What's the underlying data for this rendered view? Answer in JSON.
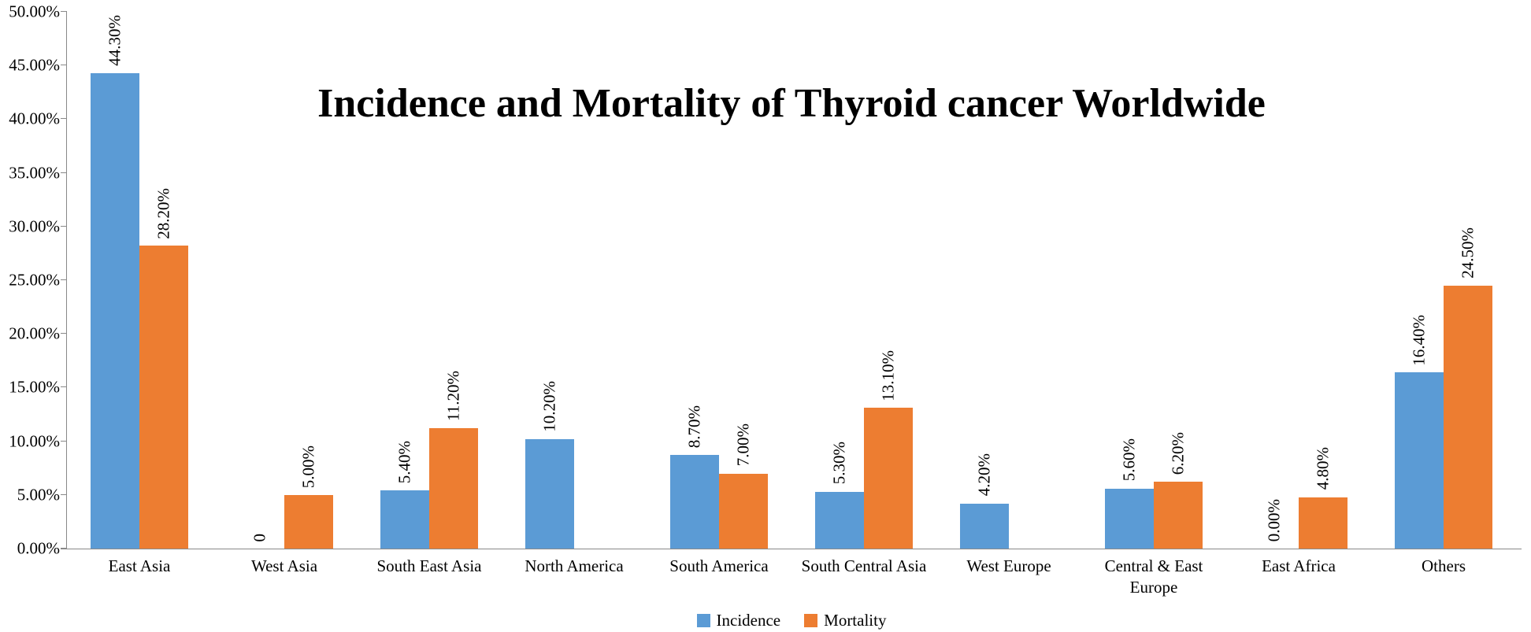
{
  "chart_data": {
    "type": "bar",
    "title": "Incidence and Mortality of Thyroid cancer Worldwide",
    "categories": [
      "East Asia",
      "West Asia",
      "South East Asia",
      "North America",
      "South America",
      "South Central Asia",
      "West Europe",
      "Central & East Europe",
      "East Africa",
      "Others"
    ],
    "series": [
      {
        "name": "Incidence",
        "color": "#5B9BD5",
        "values": [
          44.3,
          0,
          5.4,
          10.2,
          8.7,
          5.3,
          4.2,
          5.6,
          0,
          16.4
        ],
        "labels": [
          "44.30%",
          "0",
          "5.40%",
          "10.20%",
          "8.70%",
          "5.30%",
          "4.20%",
          "5.60%",
          "0.00%",
          "16.40%"
        ]
      },
      {
        "name": "Mortality",
        "color": "#ED7D31",
        "values": [
          28.2,
          5.0,
          11.2,
          null,
          7.0,
          13.1,
          null,
          6.2,
          4.8,
          24.5
        ],
        "labels": [
          "28.20%",
          "5.00%",
          "11.20%",
          null,
          "7.00%",
          "13.10%",
          null,
          "6.20%",
          "4.80%",
          "24.50%"
        ]
      }
    ],
    "ylim": [
      0,
      50
    ],
    "ytick_step": 5,
    "ytick_labels": [
      "0.00%",
      "5.00%",
      "10.00%",
      "15.00%",
      "20.00%",
      "25.00%",
      "30.00%",
      "35.00%",
      "40.00%",
      "45.00%",
      "50.00%"
    ],
    "grid": false,
    "legend_position": "bottom",
    "axis_color": "#898989",
    "text_color": "#000000"
  }
}
